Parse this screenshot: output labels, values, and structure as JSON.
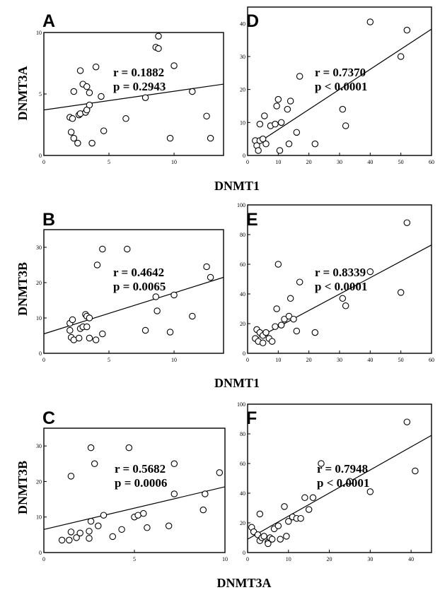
{
  "figure_labels": {
    "x_row1": "DNMT1",
    "x_row2": "DNMT1",
    "x_row3": "DNMT3A",
    "y_row1": "DNMT3A",
    "y_row2": "DNMT3B",
    "y_row3": "DNMT3B"
  },
  "chart_data": [
    {
      "panel": "A",
      "type": "scatter",
      "trend_line": true,
      "r_text": "r = 0.1882",
      "p_text": "p = 0.2943",
      "xlim": [
        0,
        13.8
      ],
      "ylim": [
        0,
        10
      ],
      "xticks": [
        0,
        5,
        10
      ],
      "yticks": [
        0,
        5,
        10
      ],
      "trend": [
        [
          0,
          3.7
        ],
        [
          13.8,
          5.8
        ]
      ],
      "points": [
        [
          2.0,
          3.1
        ],
        [
          2.1,
          1.9
        ],
        [
          2.2,
          3.0
        ],
        [
          2.3,
          5.2
        ],
        [
          2.3,
          1.4
        ],
        [
          2.6,
          1.0
        ],
        [
          2.7,
          3.3
        ],
        [
          2.8,
          3.4
        ],
        [
          2.8,
          6.9
        ],
        [
          3.0,
          5.8
        ],
        [
          3.2,
          3.5
        ],
        [
          3.3,
          3.7
        ],
        [
          3.3,
          5.6
        ],
        [
          3.5,
          4.1
        ],
        [
          3.5,
          5.1
        ],
        [
          3.7,
          1.0
        ],
        [
          4.0,
          7.2
        ],
        [
          4.4,
          4.8
        ],
        [
          4.6,
          2.0
        ],
        [
          6.3,
          3.0
        ],
        [
          7.8,
          4.7
        ],
        [
          8.6,
          8.8
        ],
        [
          8.8,
          9.7
        ],
        [
          8.8,
          8.7
        ],
        [
          9.7,
          1.4
        ],
        [
          10.0,
          7.3
        ],
        [
          11.4,
          5.2
        ],
        [
          12.5,
          3.2
        ],
        [
          12.8,
          1.4
        ]
      ]
    },
    {
      "panel": "D",
      "type": "scatter",
      "trend_line": true,
      "r_text": "r = 0.7370",
      "p_text": "p < 0.0001",
      "xlim": [
        0,
        60
      ],
      "ylim": [
        0,
        45
      ],
      "xticks": [
        0,
        10,
        20,
        30,
        40,
        50,
        60
      ],
      "yticks": [
        0,
        10,
        20,
        30,
        40
      ],
      "trend": [
        [
          2,
          3
        ],
        [
          60,
          38.3
        ]
      ],
      "points": [
        [
          2.5,
          4.5
        ],
        [
          3.0,
          3.0
        ],
        [
          3.5,
          1.5
        ],
        [
          4.0,
          4.5
        ],
        [
          4.0,
          9.5
        ],
        [
          5.0,
          5.0
        ],
        [
          5.5,
          12.0
        ],
        [
          6.0,
          3.5
        ],
        [
          7.5,
          9.0
        ],
        [
          9.0,
          9.5
        ],
        [
          9.5,
          15.0
        ],
        [
          10.0,
          17.0
        ],
        [
          10.5,
          1.5
        ],
        [
          11.0,
          10.0
        ],
        [
          13.0,
          14.0
        ],
        [
          13.5,
          3.5
        ],
        [
          14.0,
          16.5
        ],
        [
          16.0,
          7.0
        ],
        [
          17.0,
          24.0
        ],
        [
          22.0,
          3.5
        ],
        [
          31.0,
          14.0
        ],
        [
          32.0,
          9.0
        ],
        [
          40.0,
          40.5
        ],
        [
          50.0,
          30.0
        ],
        [
          52.0,
          38.0
        ]
      ]
    },
    {
      "panel": "B",
      "type": "scatter",
      "trend_line": true,
      "r_text": "r = 0.4642",
      "p_text": "p = 0.0065",
      "xlim": [
        0,
        13.8
      ],
      "ylim": [
        0,
        35
      ],
      "xticks": [
        0,
        5,
        10
      ],
      "yticks": [
        0,
        10,
        20,
        30
      ],
      "trend": [
        [
          0,
          5.5
        ],
        [
          13.8,
          21.5
        ]
      ],
      "points": [
        [
          2.0,
          6.5
        ],
        [
          2.0,
          8.5
        ],
        [
          2.1,
          4.5
        ],
        [
          2.2,
          9.5
        ],
        [
          2.3,
          3.8
        ],
        [
          2.7,
          4.3
        ],
        [
          2.8,
          7.0
        ],
        [
          3.0,
          7.5
        ],
        [
          3.2,
          11.0
        ],
        [
          3.3,
          10.5
        ],
        [
          3.3,
          7.5
        ],
        [
          3.5,
          4.3
        ],
        [
          3.5,
          10.0
        ],
        [
          4.0,
          3.8
        ],
        [
          4.1,
          25.0
        ],
        [
          4.5,
          29.5
        ],
        [
          4.5,
          5.5
        ],
        [
          6.4,
          29.5
        ],
        [
          7.8,
          6.5
        ],
        [
          8.6,
          16.0
        ],
        [
          8.7,
          12.0
        ],
        [
          9.7,
          6.0
        ],
        [
          10.0,
          16.5
        ],
        [
          11.4,
          10.5
        ],
        [
          12.5,
          24.5
        ],
        [
          12.8,
          21.5
        ]
      ]
    },
    {
      "panel": "E",
      "type": "scatter",
      "trend_line": true,
      "r_text": "r = 0.8339",
      "p_text": "p < 0.0001",
      "xlim": [
        0,
        60
      ],
      "ylim": [
        0,
        100
      ],
      "xticks": [
        0,
        10,
        20,
        30,
        40,
        50,
        60
      ],
      "yticks": [
        0,
        20,
        40,
        60,
        80,
        100
      ],
      "trend": [
        [
          2,
          9
        ],
        [
          60,
          73
        ]
      ],
      "points": [
        [
          2.5,
          10
        ],
        [
          3.0,
          16
        ],
        [
          3.5,
          8
        ],
        [
          4.0,
          14
        ],
        [
          5.0,
          7
        ],
        [
          5.0,
          12
        ],
        [
          6.0,
          14
        ],
        [
          7.0,
          10
        ],
        [
          8.0,
          8
        ],
        [
          9.0,
          18
        ],
        [
          9.5,
          30
        ],
        [
          10.0,
          60
        ],
        [
          11.0,
          19
        ],
        [
          12.0,
          23
        ],
        [
          13.5,
          25
        ],
        [
          14.0,
          37
        ],
        [
          15.0,
          23
        ],
        [
          16.0,
          15
        ],
        [
          17.0,
          48
        ],
        [
          22.0,
          14
        ],
        [
          31.0,
          37
        ],
        [
          32.0,
          32
        ],
        [
          40.0,
          55
        ],
        [
          50.0,
          41
        ],
        [
          52.0,
          88
        ]
      ]
    },
    {
      "panel": "C",
      "type": "scatter",
      "trend_line": true,
      "r_text": "r = 0.5682",
      "p_text": "p = 0.0006",
      "xlim": [
        0,
        10
      ],
      "ylim": [
        0,
        35
      ],
      "xticks": [
        0,
        5,
        10
      ],
      "yticks": [
        0,
        10,
        20,
        30
      ],
      "trend": [
        [
          0,
          6.5
        ],
        [
          10,
          18.5
        ]
      ],
      "points": [
        [
          1.0,
          3.5
        ],
        [
          1.4,
          3.5
        ],
        [
          1.5,
          21.5
        ],
        [
          1.5,
          5.8
        ],
        [
          1.8,
          4.2
        ],
        [
          2.0,
          5.5
        ],
        [
          2.5,
          6.0
        ],
        [
          2.5,
          4.0
        ],
        [
          2.6,
          29.5
        ],
        [
          2.6,
          8.8
        ],
        [
          2.8,
          25.0
        ],
        [
          3.0,
          7.5
        ],
        [
          3.3,
          10.5
        ],
        [
          3.8,
          4.5
        ],
        [
          4.3,
          6.5
        ],
        [
          4.7,
          29.5
        ],
        [
          5.0,
          10.0
        ],
        [
          5.2,
          10.5
        ],
        [
          5.5,
          11.0
        ],
        [
          5.7,
          7.0
        ],
        [
          6.9,
          7.5
        ],
        [
          7.2,
          16.5
        ],
        [
          7.2,
          25.0
        ],
        [
          8.8,
          12.0
        ],
        [
          8.9,
          16.5
        ],
        [
          9.7,
          22.5
        ]
      ]
    },
    {
      "panel": "F",
      "type": "scatter",
      "trend_line": true,
      "r_text": "r = 0.7948",
      "p_text": "p < 0.0001",
      "xlim": [
        0,
        45
      ],
      "ylim": [
        0,
        100
      ],
      "xticks": [
        0,
        10,
        20,
        30,
        40
      ],
      "yticks": [
        0,
        20,
        40,
        60,
        80,
        100
      ],
      "trend": [
        [
          0,
          9
        ],
        [
          45,
          79
        ]
      ],
      "points": [
        [
          1.0,
          17
        ],
        [
          1.5,
          14
        ],
        [
          2.5,
          12
        ],
        [
          3.0,
          8
        ],
        [
          3.0,
          26
        ],
        [
          3.5,
          10
        ],
        [
          4.0,
          11
        ],
        [
          5.0,
          7
        ],
        [
          5.0,
          6
        ],
        [
          5.5,
          10
        ],
        [
          6.0,
          9
        ],
        [
          6.5,
          16
        ],
        [
          7.5,
          18
        ],
        [
          8.0,
          9
        ],
        [
          9.0,
          31
        ],
        [
          9.5,
          11
        ],
        [
          10.0,
          21
        ],
        [
          11.0,
          24
        ],
        [
          12.0,
          23
        ],
        [
          13.0,
          23
        ],
        [
          14.0,
          37
        ],
        [
          15.0,
          29
        ],
        [
          16.0,
          37
        ],
        [
          18.0,
          60
        ],
        [
          25.0,
          48
        ],
        [
          30.0,
          41
        ],
        [
          39.0,
          88
        ],
        [
          41.0,
          55
        ]
      ]
    }
  ]
}
